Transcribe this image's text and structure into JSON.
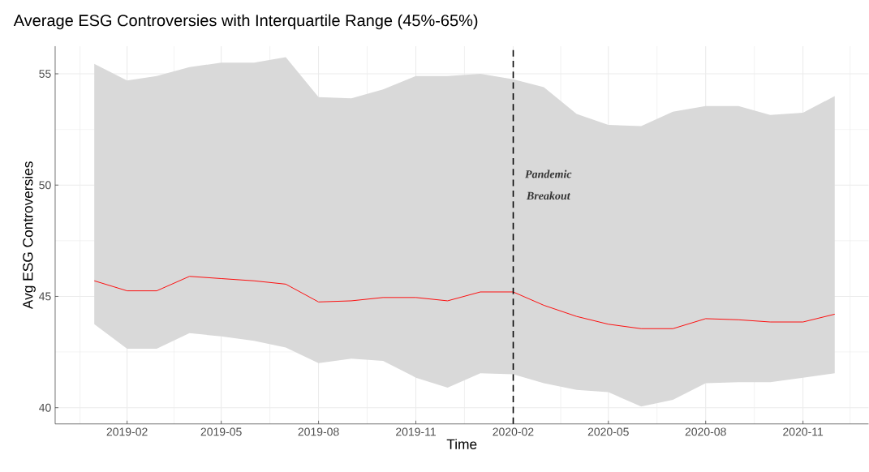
{
  "chart_data": {
    "type": "line",
    "title": "Average ESG Controversies with Interquartile Range (45%-65%)",
    "xlabel": "Time",
    "ylabel": "Avg ESG Controversies",
    "x": [
      "2019-01",
      "2019-02",
      "2019-03",
      "2019-04",
      "2019-05",
      "2019-06",
      "2019-07",
      "2019-08",
      "2019-09",
      "2019-10",
      "2019-11",
      "2019-12",
      "2020-01",
      "2020-02",
      "2020-03",
      "2020-04",
      "2020-05",
      "2020-06",
      "2020-07",
      "2020-08",
      "2020-09",
      "2020-10",
      "2020-11",
      "2020-12"
    ],
    "series": [
      {
        "color": "#ff0000",
        "values": [
          45.7,
          45.25,
          45.25,
          45.9,
          45.8,
          45.7,
          45.55,
          44.75,
          44.8,
          44.95,
          44.95,
          44.8,
          45.2,
          45.2,
          44.6,
          44.1,
          43.75,
          43.55,
          43.55,
          44.0,
          43.95,
          43.85,
          43.85,
          44.2
        ],
        "upper": [
          55.45,
          54.7,
          54.9,
          55.3,
          55.5,
          55.5,
          55.75,
          53.95,
          53.9,
          54.3,
          54.9,
          54.9,
          55.0,
          54.75,
          54.4,
          53.2,
          52.7,
          52.65,
          53.3,
          53.55,
          53.55,
          53.15,
          53.25,
          54.0
        ],
        "lower": [
          43.75,
          42.65,
          42.65,
          43.35,
          43.2,
          43.0,
          42.7,
          42.0,
          42.2,
          42.1,
          41.35,
          40.9,
          41.55,
          41.5,
          41.1,
          40.8,
          40.7,
          40.05,
          40.35,
          41.1,
          41.15,
          41.15,
          41.35,
          41.55
        ]
      }
    ],
    "xlim": [
      "2018-11-25",
      "2021-01-02"
    ],
    "xticks": [
      {
        "value": "2019-02",
        "label": "2019-02"
      },
      {
        "value": "2019-05",
        "label": "2019-05"
      },
      {
        "value": "2019-08",
        "label": "2019-08"
      },
      {
        "value": "2019-11",
        "label": "2019-11"
      },
      {
        "value": "2020-02",
        "label": "2020-02"
      },
      {
        "value": "2020-05",
        "label": "2020-05"
      },
      {
        "value": "2020-08",
        "label": "2020-08"
      },
      {
        "value": "2020-11",
        "label": "2020-11"
      }
    ],
    "ylim": [
      39.27,
      56.24
    ],
    "yticks": [
      40,
      45,
      50,
      55
    ],
    "ref_lines": [
      {
        "axis": "x",
        "value": "2020-02",
        "label": "Pandemic Breakout",
        "color": "#000000",
        "line_style": "dashed"
      }
    ],
    "grid": true,
    "line_style": "solid",
    "marker": "none"
  }
}
